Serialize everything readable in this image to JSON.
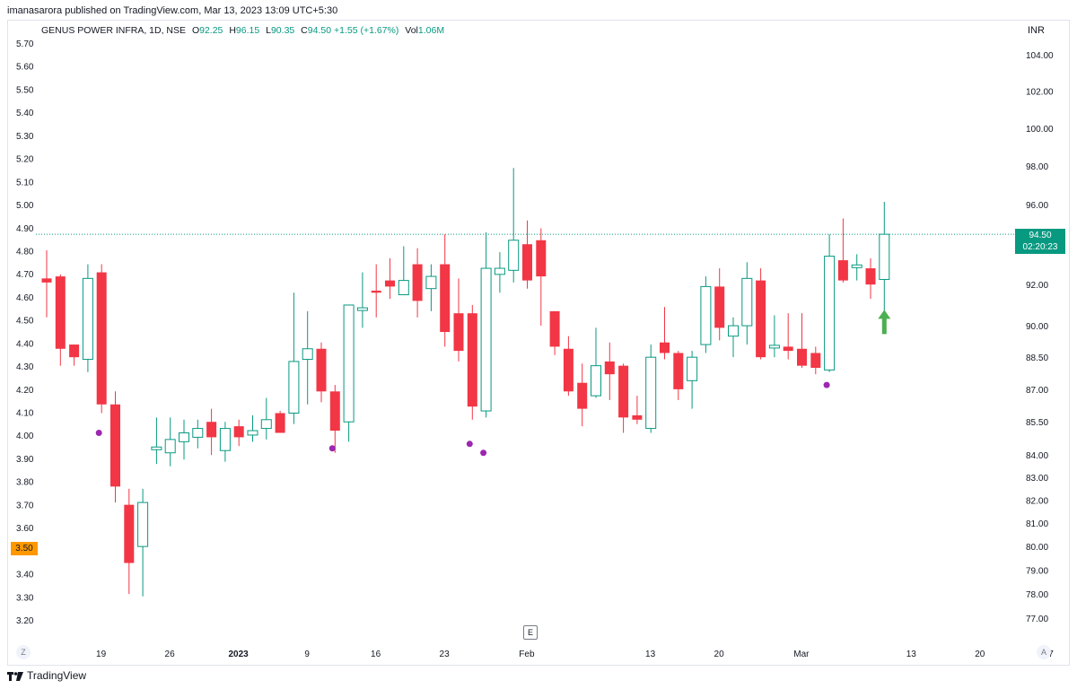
{
  "publisher": "imanasarora published on TradingView.com, Mar 13, 2023 13:09 UTC+5:30",
  "legend": {
    "symbol": "GENUS POWER INFRA, 1D, NSE",
    "open_label": "O",
    "open": "92.25",
    "high_label": "H",
    "high": "96.15",
    "low_label": "L",
    "low": "90.35",
    "close_label": "C",
    "close": "94.50",
    "change": "+1.55 (+1.67%)",
    "vol_label": "Vol",
    "vol": "1.06M"
  },
  "currency": "INR",
  "last_price_tag": {
    "price": "94.50",
    "countdown": "02:20:23"
  },
  "left_scale_tag": "3.50",
  "e_button": "E",
  "z_button": "Z",
  "a_button": "A",
  "branding": "TradingView",
  "colors": {
    "up": "#089981",
    "down": "#f23645",
    "marker": "#9c27b0",
    "arrow": "#4caf50",
    "tag_left": "#ff9800"
  },
  "chart_data": {
    "type": "candlestick",
    "title": "GENUS POWER INFRA, 1D, NSE",
    "right_axis": {
      "scale": "log",
      "ticks": [
        "104.00",
        "102.00",
        "100.00",
        "98.00",
        "96.00",
        "94.00",
        "92.00",
        "90.00",
        "88.50",
        "87.00",
        "85.50",
        "84.00",
        "83.00",
        "82.00",
        "81.00",
        "80.00",
        "79.00",
        "78.00",
        "77.00"
      ],
      "range": [
        76.0,
        106.0
      ]
    },
    "left_axis": {
      "ticks": [
        "5.70",
        "5.60",
        "5.50",
        "5.40",
        "5.30",
        "5.20",
        "5.10",
        "5.00",
        "4.90",
        "4.80",
        "4.70",
        "4.60",
        "4.50",
        "4.40",
        "4.30",
        "4.20",
        "4.10",
        "4.00",
        "3.90",
        "3.80",
        "3.70",
        "3.60",
        "3.50",
        "3.40",
        "3.30",
        "3.20"
      ]
    },
    "x_axis": {
      "ticks": [
        {
          "label": "19",
          "idx": 2
        },
        {
          "label": "26",
          "idx": 7
        },
        {
          "label": "2023",
          "idx": 12
        },
        {
          "label": "9",
          "idx": 17
        },
        {
          "label": "16",
          "idx": 22
        },
        {
          "label": "23",
          "idx": 27
        },
        {
          "label": "Feb",
          "idx": 33
        },
        {
          "label": "13",
          "idx": 42
        },
        {
          "label": "20",
          "idx": 47
        },
        {
          "label": "Mar",
          "idx": 53
        },
        {
          "label": "13",
          "idx": 61
        },
        {
          "label": "20",
          "idx": 66
        },
        {
          "label": "27",
          "idx": 71
        }
      ]
    },
    "candles": [
      {
        "o": 92.3,
        "h": 93.7,
        "l": 90.4,
        "c": 92.1
      },
      {
        "o": 92.4,
        "h": 92.5,
        "l": 88.1,
        "c": 88.9
      },
      {
        "o": 89.1,
        "h": 89.1,
        "l": 88.1,
        "c": 88.5
      },
      {
        "o": 88.4,
        "h": 93.0,
        "l": 87.8,
        "c": 92.3
      },
      {
        "o": 92.6,
        "h": 93.0,
        "l": 85.9,
        "c": 86.3
      },
      {
        "o": 86.3,
        "h": 86.9,
        "l": 81.9,
        "c": 82.6
      },
      {
        "o": 81.8,
        "h": 82.5,
        "l": 78.0,
        "c": 79.3
      },
      {
        "o": 80.0,
        "h": 82.5,
        "l": 77.9,
        "c": 81.9
      },
      {
        "o": 84.3,
        "h": 85.7,
        "l": 83.6,
        "c": 84.3
      },
      {
        "o": 84.1,
        "h": 85.7,
        "l": 83.5,
        "c": 84.7
      },
      {
        "o": 84.6,
        "h": 85.6,
        "l": 83.8,
        "c": 85.0
      },
      {
        "o": 84.8,
        "h": 85.6,
        "l": 84.3,
        "c": 85.2
      },
      {
        "o": 85.5,
        "h": 86.1,
        "l": 84.0,
        "c": 84.8
      },
      {
        "o": 84.2,
        "h": 85.5,
        "l": 83.7,
        "c": 85.2
      },
      {
        "o": 85.3,
        "h": 85.6,
        "l": 84.4,
        "c": 84.8
      },
      {
        "o": 84.9,
        "h": 85.8,
        "l": 84.6,
        "c": 85.1
      },
      {
        "o": 85.2,
        "h": 86.6,
        "l": 84.7,
        "c": 85.6
      },
      {
        "o": 85.9,
        "h": 86.0,
        "l": 85.0,
        "c": 85.0
      },
      {
        "o": 85.9,
        "h": 91.6,
        "l": 85.4,
        "c": 88.3
      },
      {
        "o": 88.4,
        "h": 90.7,
        "l": 86.3,
        "c": 88.9
      },
      {
        "o": 88.9,
        "h": 89.2,
        "l": 86.4,
        "c": 86.9
      },
      {
        "o": 86.9,
        "h": 87.2,
        "l": 84.1,
        "c": 85.1
      },
      {
        "o": 85.5,
        "h": 91.0,
        "l": 84.6,
        "c": 91.0
      },
      {
        "o": 90.8,
        "h": 92.6,
        "l": 89.9,
        "c": 90.8
      },
      {
        "o": 91.7,
        "h": 93.0,
        "l": 90.4,
        "c": 91.6
      },
      {
        "o": 92.2,
        "h": 93.3,
        "l": 91.3,
        "c": 91.9
      },
      {
        "o": 91.5,
        "h": 93.9,
        "l": 91.5,
        "c": 92.2
      },
      {
        "o": 93.0,
        "h": 93.8,
        "l": 90.4,
        "c": 91.2
      },
      {
        "o": 91.8,
        "h": 93.0,
        "l": 90.7,
        "c": 92.4
      },
      {
        "o": 93.0,
        "h": 94.5,
        "l": 89.0,
        "c": 89.7
      },
      {
        "o": 90.6,
        "h": 92.3,
        "l": 88.3,
        "c": 88.8
      },
      {
        "o": 90.6,
        "h": 91.0,
        "l": 85.6,
        "c": 86.2
      },
      {
        "o": 86.0,
        "h": 94.6,
        "l": 85.7,
        "c": 92.8
      },
      {
        "o": 92.5,
        "h": 93.6,
        "l": 91.6,
        "c": 92.8
      },
      {
        "o": 92.7,
        "h": 97.9,
        "l": 92.1,
        "c": 94.2
      },
      {
        "o": 94.0,
        "h": 95.2,
        "l": 91.8,
        "c": 92.2
      },
      {
        "o": 94.2,
        "h": 94.8,
        "l": 90.0,
        "c": 92.4
      },
      {
        "o": 90.7,
        "h": 90.7,
        "l": 88.6,
        "c": 89.0
      },
      {
        "o": 88.9,
        "h": 89.5,
        "l": 86.7,
        "c": 86.9
      },
      {
        "o": 87.3,
        "h": 88.2,
        "l": 85.3,
        "c": 86.1
      },
      {
        "o": 86.7,
        "h": 89.9,
        "l": 86.6,
        "c": 88.1
      },
      {
        "o": 88.3,
        "h": 89.2,
        "l": 86.5,
        "c": 87.7
      },
      {
        "o": 88.1,
        "h": 88.2,
        "l": 85.0,
        "c": 85.7
      },
      {
        "o": 85.8,
        "h": 86.7,
        "l": 85.4,
        "c": 85.6
      },
      {
        "o": 85.2,
        "h": 89.1,
        "l": 85.0,
        "c": 88.5
      },
      {
        "o": 89.2,
        "h": 90.9,
        "l": 88.4,
        "c": 88.7
      },
      {
        "o": 88.7,
        "h": 88.8,
        "l": 86.5,
        "c": 87.0
      },
      {
        "o": 87.4,
        "h": 88.8,
        "l": 86.1,
        "c": 88.5
      },
      {
        "o": 89.1,
        "h": 92.4,
        "l": 88.7,
        "c": 91.9
      },
      {
        "o": 91.9,
        "h": 92.8,
        "l": 89.3,
        "c": 89.9
      },
      {
        "o": 89.5,
        "h": 90.4,
        "l": 88.5,
        "c": 90.0
      },
      {
        "o": 90.0,
        "h": 93.1,
        "l": 89.1,
        "c": 92.3
      },
      {
        "o": 92.2,
        "h": 92.8,
        "l": 88.4,
        "c": 88.5
      },
      {
        "o": 89.0,
        "h": 90.5,
        "l": 88.5,
        "c": 89.0
      },
      {
        "o": 89.0,
        "h": 90.6,
        "l": 88.4,
        "c": 88.8
      },
      {
        "o": 88.9,
        "h": 90.6,
        "l": 88.0,
        "c": 88.1
      },
      {
        "o": 88.7,
        "h": 89.0,
        "l": 87.7,
        "c": 88.0
      },
      {
        "o": 87.9,
        "h": 94.5,
        "l": 87.8,
        "c": 93.4
      },
      {
        "o": 93.2,
        "h": 95.3,
        "l": 92.1,
        "c": 92.2
      },
      {
        "o": 92.9,
        "h": 93.5,
        "l": 92.2,
        "c": 92.9
      },
      {
        "o": 92.8,
        "h": 93.3,
        "l": 91.3,
        "c": 92.0
      },
      {
        "o": 92.25,
        "h": 96.15,
        "l": 90.35,
        "c": 94.5
      }
    ],
    "markers": [
      {
        "idx": 4,
        "price": 85.0
      },
      {
        "idx": 21,
        "price": 84.3
      },
      {
        "idx": 31,
        "price": 84.5
      },
      {
        "idx": 32,
        "price": 84.1
      },
      {
        "idx": 57,
        "price": 87.2
      }
    ],
    "up_arrow": {
      "idx": 61,
      "price": 89.6
    },
    "last_price_line": 94.5
  }
}
